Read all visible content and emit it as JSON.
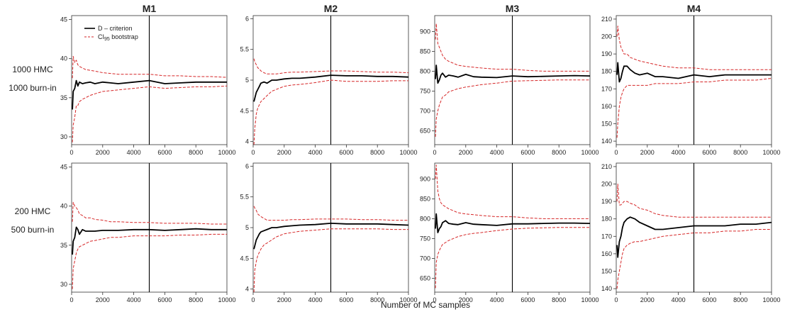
{
  "figure": {
    "xlabel": "Number of MC samples",
    "row_labels": [
      [
        "1000 HMC",
        "1000 burn-in"
      ],
      [
        "200 HMC",
        "500 burn-in"
      ]
    ],
    "legend": {
      "entries": [
        "D – criterion",
        "CI95 bootstrap"
      ],
      "ci_parts": [
        "CI",
        "95",
        " bootstrap"
      ],
      "placement": "top-left of first panel"
    },
    "colors": {
      "criterion": "#000000",
      "ci": "#d62728",
      "axis": "#333333",
      "vline": "#000000"
    }
  },
  "chart_data": [
    {
      "type": "line",
      "title": "M1",
      "row": 0,
      "col": 0,
      "xlim": [
        0,
        10000
      ],
      "ylim": [
        29,
        45.5
      ],
      "xticks": [
        0,
        2000,
        4000,
        6000,
        8000,
        10000
      ],
      "yticks": [
        30,
        35,
        40,
        45
      ],
      "vline_x": 5000,
      "x": [
        50,
        100,
        200,
        300,
        400,
        500,
        700,
        900,
        1200,
        1500,
        2000,
        2500,
        3000,
        4000,
        5000,
        6000,
        7000,
        8000,
        9000,
        10000
      ],
      "series": [
        {
          "name": "D – criterion",
          "role": "mean",
          "values": [
            33.5,
            35.8,
            36.2,
            37.2,
            36.5,
            37.0,
            36.8,
            36.9,
            37.0,
            36.8,
            37.0,
            36.9,
            36.8,
            37.0,
            37.2,
            36.8,
            36.9,
            37.0,
            37.0,
            37.0
          ]
        },
        {
          "name": "CI95 bootstrap",
          "role": "upper",
          "values": [
            37.5,
            40.3,
            39.5,
            39.8,
            39.2,
            39.0,
            38.8,
            38.6,
            38.5,
            38.4,
            38.2,
            38.1,
            38.0,
            38.0,
            38.0,
            37.8,
            37.8,
            37.7,
            37.7,
            37.6
          ]
        },
        {
          "name": "CI95 bootstrap",
          "role": "lower",
          "values": [
            29.3,
            31.5,
            32.5,
            34.0,
            34.0,
            34.5,
            34.8,
            35.0,
            35.3,
            35.5,
            35.8,
            35.9,
            36.0,
            36.2,
            36.4,
            36.2,
            36.3,
            36.4,
            36.4,
            36.5
          ]
        }
      ]
    },
    {
      "type": "line",
      "title": "M2",
      "row": 0,
      "col": 1,
      "xlim": [
        0,
        10000
      ],
      "ylim": [
        3.95,
        6.05
      ],
      "xticks": [
        0,
        2000,
        4000,
        6000,
        8000,
        10000
      ],
      "yticks": [
        4.0,
        4.5,
        5.0,
        5.5,
        6.0
      ],
      "vline_x": 5000,
      "x": [
        50,
        100,
        200,
        300,
        400,
        500,
        700,
        900,
        1200,
        1500,
        2000,
        2500,
        3000,
        4000,
        5000,
        6000,
        7000,
        8000,
        9000,
        10000
      ],
      "series": [
        {
          "name": "D – criterion",
          "role": "mean",
          "values": [
            4.65,
            4.7,
            4.8,
            4.85,
            4.9,
            4.95,
            4.97,
            4.95,
            5.0,
            5.0,
            5.02,
            5.03,
            5.03,
            5.05,
            5.08,
            5.07,
            5.07,
            5.06,
            5.06,
            5.05
          ]
        },
        {
          "name": "CI95 bootstrap",
          "role": "upper",
          "values": [
            5.35,
            5.3,
            5.25,
            5.2,
            5.18,
            5.15,
            5.12,
            5.1,
            5.1,
            5.1,
            5.12,
            5.13,
            5.13,
            5.14,
            5.15,
            5.15,
            5.14,
            5.13,
            5.13,
            5.12
          ]
        },
        {
          "name": "CI95 bootstrap",
          "role": "lower",
          "values": [
            3.95,
            4.2,
            4.45,
            4.55,
            4.6,
            4.65,
            4.7,
            4.75,
            4.82,
            4.85,
            4.9,
            4.92,
            4.93,
            4.96,
            5.0,
            4.98,
            4.98,
            4.98,
            4.99,
            4.99
          ]
        }
      ]
    },
    {
      "type": "line",
      "title": "M3",
      "row": 0,
      "col": 2,
      "xlim": [
        0,
        10000
      ],
      "ylim": [
        615,
        940
      ],
      "xticks": [
        0,
        2000,
        4000,
        6000,
        8000,
        10000
      ],
      "yticks": [
        650,
        700,
        750,
        800,
        850,
        900
      ],
      "vline_x": 5000,
      "x": [
        50,
        100,
        200,
        300,
        400,
        500,
        700,
        900,
        1200,
        1500,
        2000,
        2500,
        3000,
        4000,
        5000,
        6000,
        7000,
        8000,
        9000,
        10000
      ],
      "series": [
        {
          "name": "D – criterion",
          "role": "mean",
          "values": [
            780,
            815,
            770,
            778,
            790,
            795,
            785,
            790,
            788,
            785,
            792,
            786,
            785,
            784,
            788,
            786,
            787,
            788,
            789,
            788
          ]
        },
        {
          "name": "CI95 bootstrap",
          "role": "upper",
          "values": [
            880,
            920,
            870,
            860,
            850,
            840,
            830,
            825,
            820,
            815,
            812,
            810,
            808,
            805,
            805,
            802,
            800,
            800,
            800,
            800
          ]
        },
        {
          "name": "CI95 bootstrap",
          "role": "lower",
          "values": [
            635,
            680,
            700,
            715,
            725,
            735,
            740,
            748,
            752,
            756,
            760,
            763,
            766,
            770,
            775,
            776,
            777,
            778,
            778,
            778
          ]
        }
      ]
    },
    {
      "type": "line",
      "title": "M4",
      "row": 0,
      "col": 3,
      "xlim": [
        0,
        10000
      ],
      "ylim": [
        138,
        212
      ],
      "xticks": [
        0,
        2000,
        4000,
        6000,
        8000,
        10000
      ],
      "yticks": [
        140,
        150,
        160,
        170,
        180,
        190,
        200,
        210
      ],
      "vline_x": 5000,
      "x": [
        50,
        100,
        200,
        300,
        400,
        500,
        700,
        900,
        1200,
        1500,
        2000,
        2500,
        3000,
        4000,
        5000,
        6000,
        7000,
        8000,
        9000,
        10000
      ],
      "series": [
        {
          "name": "D – criterion",
          "role": "mean",
          "values": [
            178,
            185,
            174,
            176,
            180,
            183,
            183,
            181,
            179,
            178,
            179,
            177,
            177,
            176,
            178,
            177,
            178,
            178,
            178,
            178
          ]
        },
        {
          "name": "CI95 bootstrap",
          "role": "upper",
          "values": [
            200,
            206,
            198,
            194,
            192,
            190,
            190,
            188,
            187,
            186,
            185,
            184,
            183,
            182,
            182,
            181,
            181,
            181,
            181,
            181
          ]
        },
        {
          "name": "CI95 bootstrap",
          "role": "lower",
          "values": [
            142,
            150,
            160,
            165,
            168,
            170,
            172,
            172,
            172,
            172,
            172,
            173,
            173,
            173,
            174,
            174,
            175,
            175,
            175,
            176
          ]
        }
      ]
    },
    {
      "type": "line",
      "title": "",
      "row": 1,
      "col": 0,
      "xlim": [
        0,
        10000
      ],
      "ylim": [
        29,
        45.5
      ],
      "xticks": [
        0,
        2000,
        4000,
        6000,
        8000,
        10000
      ],
      "yticks": [
        30,
        35,
        40,
        45
      ],
      "vline_x": 5000,
      "x": [
        50,
        100,
        200,
        300,
        400,
        500,
        700,
        900,
        1200,
        1500,
        2000,
        2500,
        3000,
        4000,
        5000,
        6000,
        7000,
        8000,
        9000,
        10000
      ],
      "series": [
        {
          "name": "D – criterion",
          "role": "mean",
          "values": [
            33.8,
            35.5,
            36.0,
            37.3,
            37.0,
            36.4,
            37.0,
            36.8,
            36.8,
            36.8,
            36.9,
            36.9,
            36.9,
            37.0,
            37.0,
            36.9,
            37.0,
            37.1,
            37.0,
            37.0
          ]
        },
        {
          "name": "CI95 bootstrap",
          "role": "upper",
          "values": [
            38.0,
            40.5,
            40.0,
            39.8,
            39.5,
            39.0,
            38.8,
            38.5,
            38.5,
            38.3,
            38.2,
            38.0,
            38.0,
            37.9,
            37.9,
            37.8,
            37.8,
            37.8,
            37.7,
            37.7
          ]
        },
        {
          "name": "CI95 bootstrap",
          "role": "lower",
          "values": [
            29.4,
            32.0,
            33.0,
            34.0,
            34.5,
            34.8,
            35.0,
            35.2,
            35.5,
            35.6,
            35.8,
            36.0,
            36.0,
            36.2,
            36.2,
            36.2,
            36.3,
            36.3,
            36.4,
            36.4
          ]
        }
      ]
    },
    {
      "type": "line",
      "title": "",
      "row": 1,
      "col": 1,
      "xlim": [
        0,
        10000
      ],
      "ylim": [
        3.95,
        6.05
      ],
      "xticks": [
        0,
        2000,
        4000,
        6000,
        8000,
        10000
      ],
      "yticks": [
        4.0,
        4.5,
        5.0,
        5.5,
        6.0
      ],
      "vline_x": 5000,
      "x": [
        50,
        100,
        200,
        300,
        400,
        500,
        700,
        900,
        1200,
        1500,
        2000,
        2500,
        3000,
        4000,
        5000,
        6000,
        7000,
        8000,
        9000,
        10000
      ],
      "series": [
        {
          "name": "D – criterion",
          "role": "mean",
          "values": [
            4.65,
            4.7,
            4.8,
            4.85,
            4.9,
            4.93,
            4.95,
            4.97,
            5.0,
            5.0,
            5.02,
            5.03,
            5.04,
            5.05,
            5.07,
            5.06,
            5.06,
            5.06,
            5.05,
            5.04
          ]
        },
        {
          "name": "CI95 bootstrap",
          "role": "upper",
          "values": [
            5.35,
            5.32,
            5.28,
            5.22,
            5.2,
            5.18,
            5.15,
            5.12,
            5.12,
            5.12,
            5.12,
            5.13,
            5.13,
            5.14,
            5.14,
            5.14,
            5.13,
            5.13,
            5.12,
            5.12
          ]
        },
        {
          "name": "CI95 bootstrap",
          "role": "lower",
          "values": [
            3.95,
            4.3,
            4.45,
            4.55,
            4.6,
            4.65,
            4.72,
            4.75,
            4.8,
            4.85,
            4.9,
            4.92,
            4.94,
            4.96,
            4.98,
            4.98,
            4.98,
            4.98,
            4.97,
            4.97
          ]
        }
      ]
    },
    {
      "type": "line",
      "title": "",
      "row": 1,
      "col": 2,
      "xlim": [
        0,
        10000
      ],
      "ylim": [
        615,
        940
      ],
      "xticks": [
        0,
        2000,
        4000,
        6000,
        8000,
        10000
      ],
      "yticks": [
        650,
        700,
        750,
        800,
        850,
        900
      ],
      "vline_x": 5000,
      "x": [
        50,
        100,
        200,
        300,
        400,
        500,
        700,
        900,
        1200,
        1500,
        2000,
        2500,
        3000,
        4000,
        5000,
        6000,
        7000,
        8000,
        9000,
        10000
      ],
      "series": [
        {
          "name": "D – criterion",
          "role": "mean",
          "values": [
            775,
            812,
            765,
            775,
            780,
            790,
            795,
            788,
            786,
            785,
            790,
            786,
            785,
            783,
            787,
            787,
            788,
            789,
            789,
            788
          ]
        },
        {
          "name": "CI95 bootstrap",
          "role": "upper",
          "values": [
            900,
            935,
            870,
            850,
            840,
            835,
            830,
            825,
            820,
            815,
            812,
            810,
            808,
            805,
            805,
            802,
            800,
            800,
            800,
            800
          ]
        },
        {
          "name": "CI95 bootstrap",
          "role": "lower",
          "values": [
            625,
            690,
            710,
            720,
            728,
            735,
            740,
            745,
            750,
            755,
            760,
            763,
            765,
            770,
            774,
            776,
            777,
            778,
            778,
            778
          ]
        }
      ]
    },
    {
      "type": "line",
      "title": "",
      "row": 1,
      "col": 3,
      "xlim": [
        0,
        10000
      ],
      "ylim": [
        138,
        212
      ],
      "xticks": [
        0,
        2000,
        4000,
        6000,
        8000,
        10000
      ],
      "yticks": [
        140,
        150,
        160,
        170,
        180,
        190,
        200,
        210
      ],
      "vline_x": 5000,
      "x": [
        50,
        100,
        200,
        300,
        400,
        500,
        700,
        900,
        1200,
        1500,
        2000,
        2500,
        3000,
        4000,
        5000,
        6000,
        7000,
        8000,
        9000,
        10000
      ],
      "series": [
        {
          "name": "D – criterion",
          "role": "mean",
          "values": [
            165,
            158,
            167,
            170,
            175,
            178,
            180,
            181,
            180,
            178,
            176,
            174,
            174,
            175,
            176,
            176,
            176,
            177,
            177,
            178
          ]
        },
        {
          "name": "CI95 bootstrap",
          "role": "upper",
          "values": [
            190,
            200,
            188,
            188,
            189,
            190,
            190,
            189,
            188,
            186,
            185,
            183,
            182,
            181,
            181,
            181,
            181,
            181,
            181,
            181
          ]
        },
        {
          "name": "CI95 bootstrap",
          "role": "lower",
          "values": [
            140,
            145,
            150,
            155,
            160,
            163,
            165,
            166,
            167,
            167,
            168,
            169,
            170,
            171,
            172,
            172,
            173,
            173,
            174,
            174
          ]
        }
      ]
    }
  ]
}
